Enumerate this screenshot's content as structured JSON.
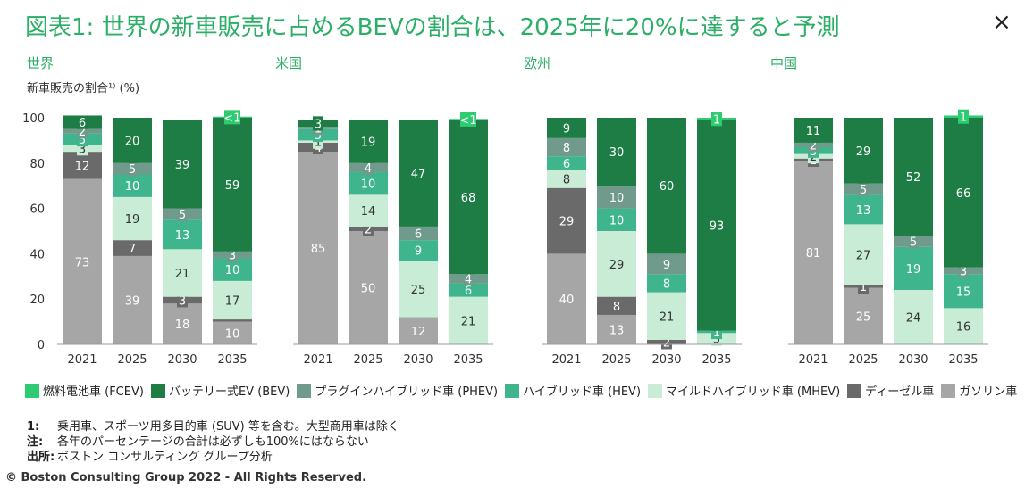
{
  "title": "図表1: 世界の新車販売に占めるBEVの割合は、2025年に20%に達すると予測",
  "close_label": "×",
  "colors": {
    "accent": "#2bae66",
    "FCEV": "#2ecc71",
    "BEV": "#1e7d45",
    "PHEV": "#6f9a8c",
    "HEV": "#3eb58d",
    "MHEV": "#c8ecd5",
    "ディーゼル": "#6a6a6a",
    "ガソリン": "#a6a6a6"
  },
  "chart_data": {
    "type": "bar",
    "stacked": true,
    "ylabel": "新車販売の割合¹⁾ (%)",
    "ylim": [
      0,
      100
    ],
    "yticks": [
      0,
      20,
      40,
      60,
      80,
      100
    ],
    "categories": [
      "2021",
      "2025",
      "2030",
      "2035"
    ],
    "legend": [
      {
        "key": "FCEV",
        "label": "燃料電池車 (FCEV)"
      },
      {
        "key": "BEV",
        "label": "バッテリー式EV (BEV)"
      },
      {
        "key": "PHEV",
        "label": "プラグインハイブリッド車 (PHEV)"
      },
      {
        "key": "HEV",
        "label": "ハイブリッド車 (HEV)"
      },
      {
        "key": "MHEV",
        "label": "マイルドハイブリッド車 (MHEV)"
      },
      {
        "key": "ディーゼル",
        "label": "ディーゼル車"
      },
      {
        "key": "ガソリン",
        "label": "ガソリン車"
      }
    ],
    "panels": [
      {
        "name": "世界",
        "series": [
          {
            "key": "ガソリン",
            "values": [
              73,
              39,
              18,
              10
            ],
            "labels": [
              "73",
              "39",
              "18",
              "10"
            ]
          },
          {
            "key": "ディーゼル",
            "values": [
              12,
              7,
              3,
              1
            ],
            "labels": [
              "12",
              "7",
              "3",
              ""
            ]
          },
          {
            "key": "MHEV",
            "values": [
              3,
              19,
              21,
              17
            ],
            "labels": [
              "3",
              "19",
              "21",
              "17"
            ]
          },
          {
            "key": "HEV",
            "values": [
              5,
              10,
              13,
              10
            ],
            "labels": [
              "5",
              "10",
              "13",
              "10"
            ]
          },
          {
            "key": "PHEV",
            "values": [
              2,
              5,
              5,
              3
            ],
            "labels": [
              "2",
              "5",
              "5",
              "3"
            ]
          },
          {
            "key": "BEV",
            "values": [
              6,
              20,
              39,
              59
            ],
            "labels": [
              "6",
              "20",
              "39",
              "59"
            ]
          },
          {
            "key": "FCEV",
            "values": [
              0,
              0,
              0,
              0.5
            ],
            "labels": [
              "",
              "",
              "",
              "<1"
            ]
          }
        ]
      },
      {
        "name": "米国",
        "series": [
          {
            "key": "ガソリン",
            "values": [
              85,
              50,
              12,
              0
            ],
            "labels": [
              "85",
              "50",
              "12",
              ""
            ]
          },
          {
            "key": "ディーゼル",
            "values": [
              4,
              2,
              0,
              0
            ],
            "labels": [
              "4",
              "2",
              "",
              ""
            ]
          },
          {
            "key": "MHEV",
            "values": [
              1,
              14,
              25,
              21
            ],
            "labels": [
              "1",
              "14",
              "25",
              "21"
            ]
          },
          {
            "key": "HEV",
            "values": [
              5,
              10,
              9,
              6
            ],
            "labels": [
              "5",
              "10",
              "9",
              "6"
            ]
          },
          {
            "key": "PHEV",
            "values": [
              1,
              4,
              6,
              4
            ],
            "labels": [
              "1",
              "4",
              "6",
              "4"
            ]
          },
          {
            "key": "BEV",
            "values": [
              3,
              19,
              47,
              68
            ],
            "labels": [
              "3",
              "19",
              "47",
              "68"
            ]
          },
          {
            "key": "FCEV",
            "values": [
              0,
              0,
              0,
              0.5
            ],
            "labels": [
              "",
              "",
              "",
              "<1"
            ]
          }
        ]
      },
      {
        "name": "欧州",
        "series": [
          {
            "key": "ガソリン",
            "values": [
              40,
              13,
              0,
              0
            ],
            "labels": [
              "40",
              "13",
              "",
              ""
            ]
          },
          {
            "key": "ディーゼル",
            "values": [
              29,
              8,
              2,
              0
            ],
            "labels": [
              "29",
              "8",
              "2",
              ""
            ]
          },
          {
            "key": "MHEV",
            "values": [
              8,
              29,
              21,
              5
            ],
            "labels": [
              "8",
              "29",
              "21",
              "5"
            ]
          },
          {
            "key": "HEV",
            "values": [
              6,
              10,
              8,
              1
            ],
            "labels": [
              "6",
              "10",
              "8",
              "1"
            ]
          },
          {
            "key": "PHEV",
            "values": [
              8,
              10,
              9,
              0
            ],
            "labels": [
              "8",
              "10",
              "9",
              ""
            ]
          },
          {
            "key": "BEV",
            "values": [
              9,
              30,
              60,
              93
            ],
            "labels": [
              "9",
              "30",
              "60",
              "93"
            ]
          },
          {
            "key": "FCEV",
            "values": [
              0,
              0,
              0,
              1
            ],
            "labels": [
              "",
              "",
              "",
              "1"
            ]
          }
        ]
      },
      {
        "name": "中国",
        "series": [
          {
            "key": "ガソリン",
            "values": [
              81,
              25,
              0,
              0
            ],
            "labels": [
              "81",
              "25",
              "",
              ""
            ]
          },
          {
            "key": "ディーゼル",
            "values": [
              1,
              1,
              0,
              0
            ],
            "labels": [
              "1",
              "1",
              "",
              ""
            ]
          },
          {
            "key": "MHEV",
            "values": [
              2,
              27,
              24,
              16
            ],
            "labels": [
              "2",
              "27",
              "24",
              "16"
            ]
          },
          {
            "key": "HEV",
            "values": [
              3,
              13,
              19,
              15
            ],
            "labels": [
              "3",
              "13",
              "19",
              "15"
            ]
          },
          {
            "key": "PHEV",
            "values": [
              2,
              5,
              5,
              3
            ],
            "labels": [
              "2",
              "5",
              "5",
              "3"
            ]
          },
          {
            "key": "BEV",
            "values": [
              11,
              29,
              52,
              66
            ],
            "labels": [
              "11",
              "29",
              "52",
              "66"
            ]
          },
          {
            "key": "FCEV",
            "values": [
              0,
              0,
              0,
              1
            ],
            "labels": [
              "",
              "",
              "",
              "1"
            ]
          }
        ]
      }
    ]
  },
  "notes": [
    {
      "key": "1:",
      "text": "乗用車、スポーツ用多目的車 (SUV) 等を含む。大型商用車は除く"
    },
    {
      "key": "注:",
      "text": "各年のパーセンテージの合計は必ずしも100%にはならない"
    },
    {
      "key": "出所:",
      "text": "ボストン コンサルティング グループ分析"
    }
  ],
  "copyright": "© Boston Consulting Group 2022 - All Rights Reserved."
}
